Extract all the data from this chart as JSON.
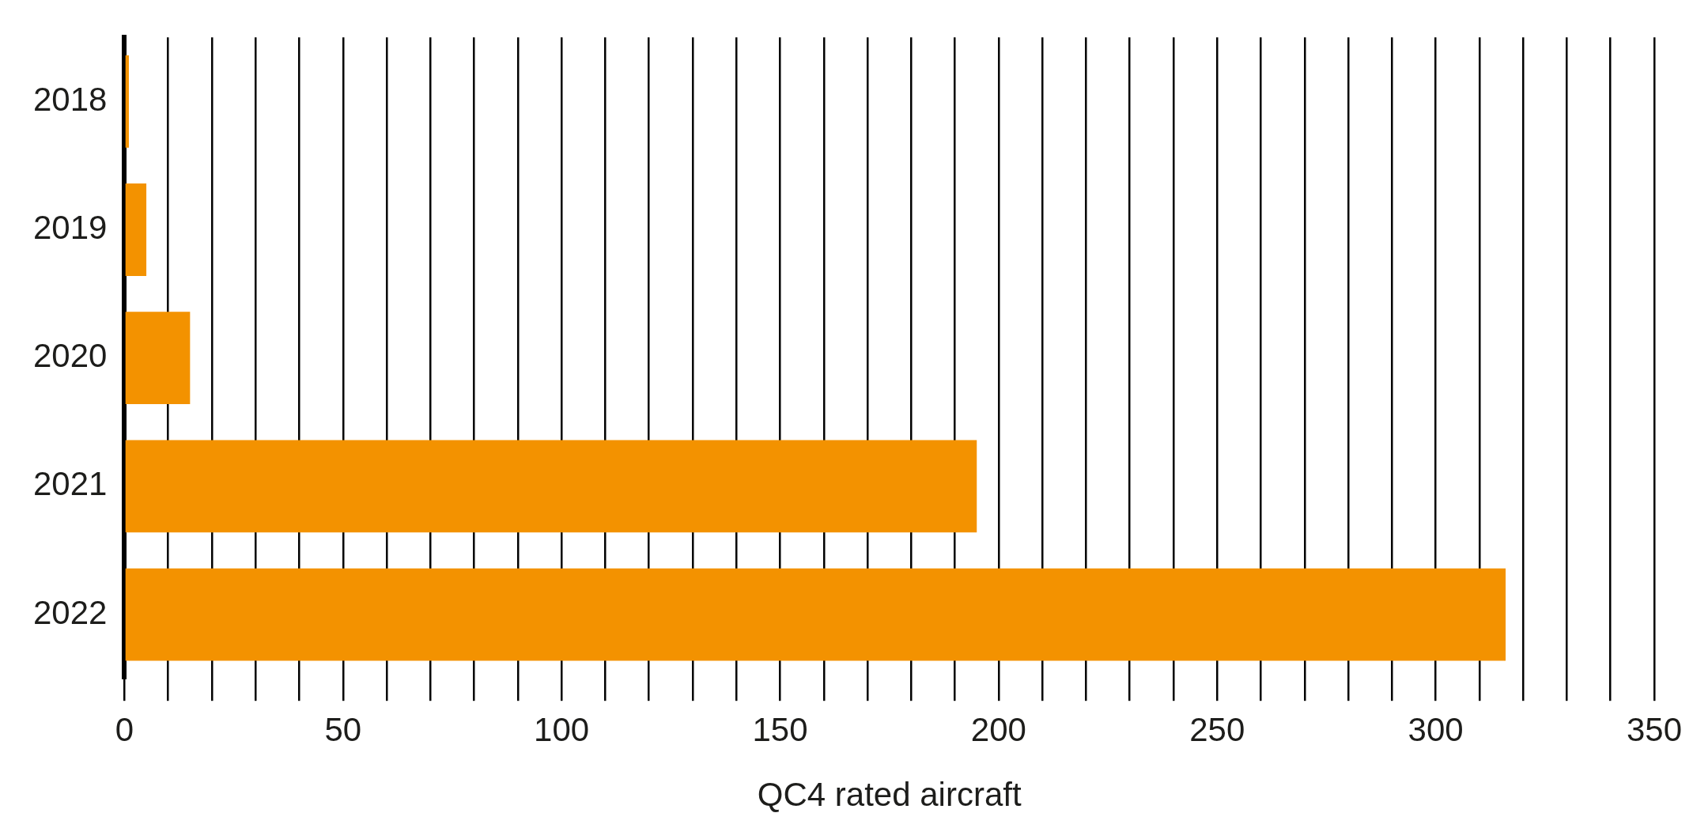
{
  "chart_data": {
    "type": "bar",
    "orientation": "horizontal",
    "xlabel": "QC4 rated aircraft",
    "categories": [
      "2018",
      "2019",
      "2020",
      "2021",
      "2022"
    ],
    "values": [
      1,
      5,
      15,
      195,
      316
    ],
    "color": "#f39200",
    "xlim": [
      0,
      350
    ],
    "xticks": [
      0,
      {
        "value": 10,
        "label": null
      },
      {
        "value": 20,
        "label": null
      },
      {
        "value": 30,
        "label": null
      },
      {
        "value": 40,
        "label": null
      },
      50,
      {
        "value": 60,
        "label": null
      },
      {
        "value": 70,
        "label": null
      },
      {
        "value": 80,
        "label": null
      },
      {
        "value": 90,
        "label": null
      },
      100,
      {
        "value": 110,
        "label": null
      },
      {
        "value": 120,
        "label": null
      },
      {
        "value": 130,
        "label": null
      },
      {
        "value": 140,
        "label": null
      },
      150,
      {
        "value": 160,
        "label": null
      },
      {
        "value": 170,
        "label": null
      },
      {
        "value": 180,
        "label": null
      },
      {
        "value": 190,
        "label": null
      },
      200,
      {
        "value": 210,
        "label": null
      },
      {
        "value": 220,
        "label": null
      },
      {
        "value": 230,
        "label": null
      },
      {
        "value": 240,
        "label": null
      },
      250,
      {
        "value": 260,
        "label": null
      },
      {
        "value": 270,
        "label": null
      },
      {
        "value": 280,
        "label": null
      },
      {
        "value": 290,
        "label": null
      },
      300,
      {
        "value": 310,
        "label": null
      },
      {
        "value": 320,
        "label": null
      },
      {
        "value": 330,
        "label": null
      },
      {
        "value": 340,
        "label": null
      },
      350
    ],
    "grid": "x",
    "legend": false
  }
}
